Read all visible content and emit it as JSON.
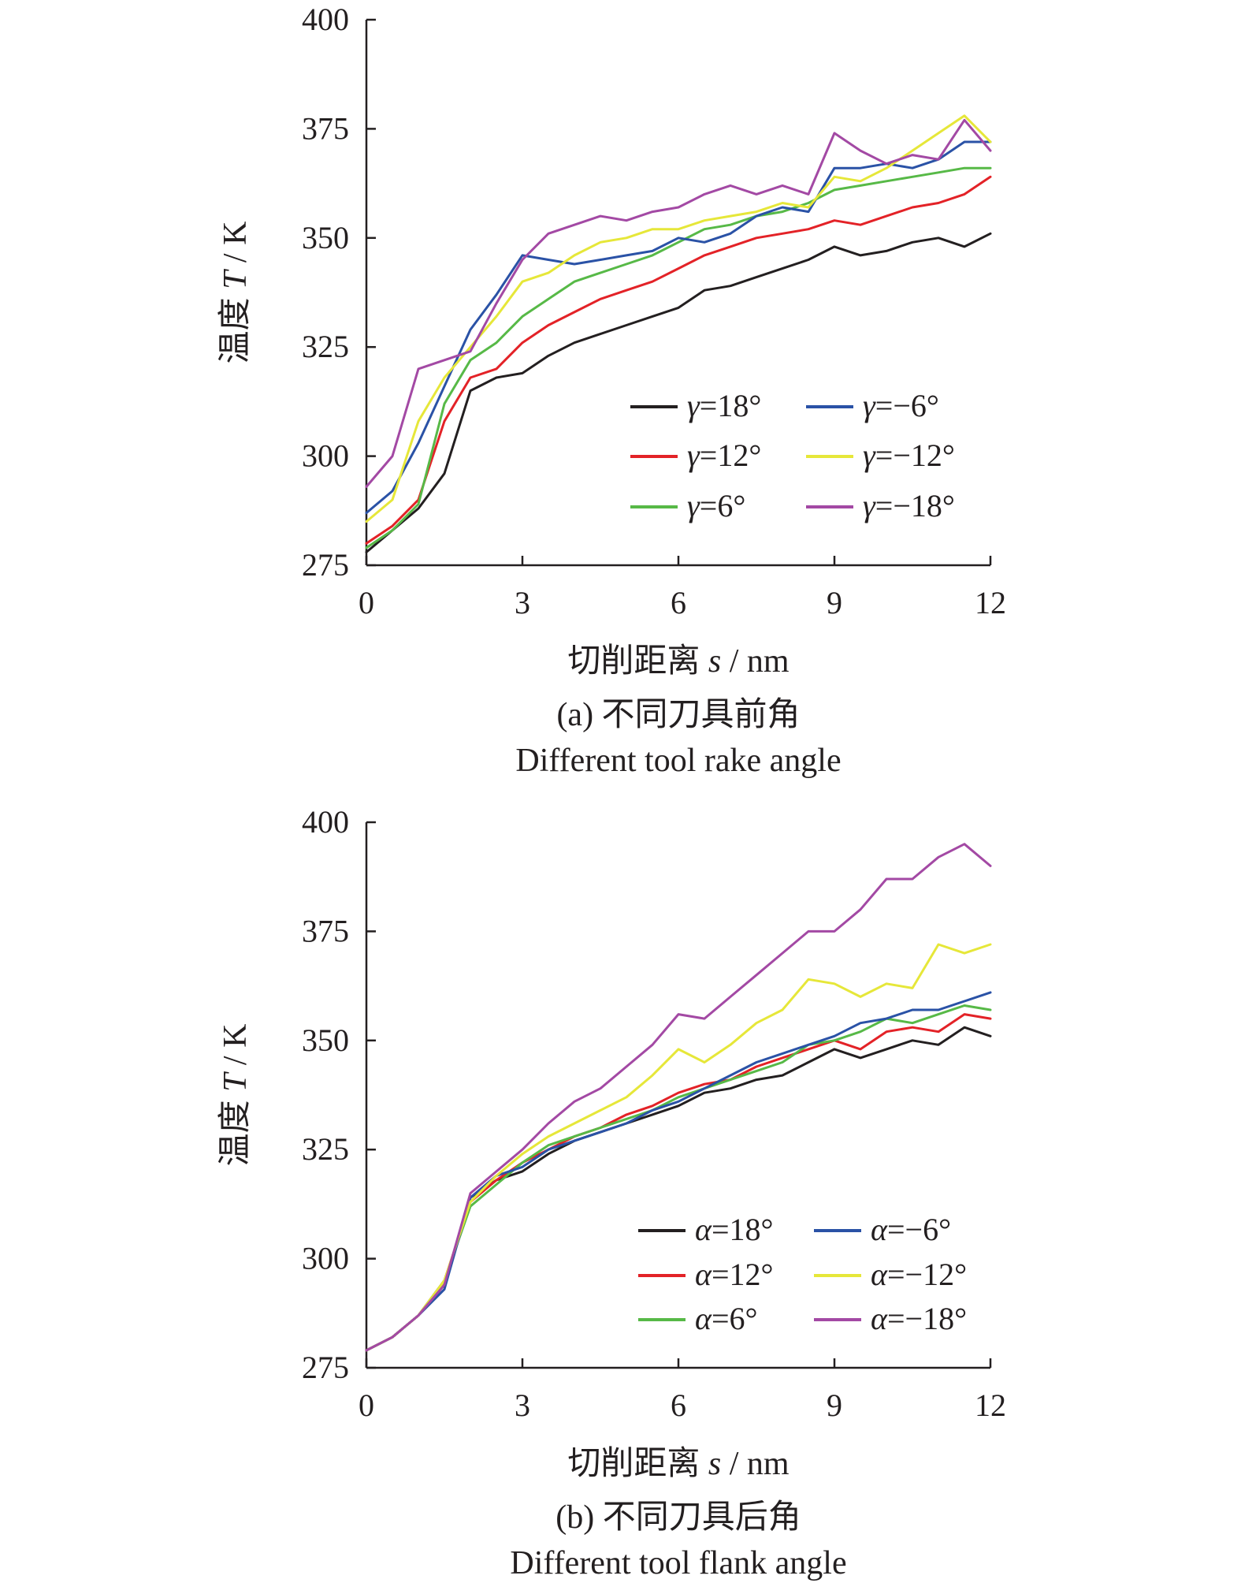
{
  "chart_data": [
    {
      "type": "line",
      "panel": "a",
      "caption": "(a) 不同刀具前角",
      "subcaption": "Different tool rake angle",
      "xlabel_main": "切削距离 ",
      "xlabel_var": "s",
      "xlabel_unit": " / nm",
      "ylabel_main": "温度 ",
      "ylabel_var": "T",
      "ylabel_unit": " / K",
      "xlim": [
        0,
        12
      ],
      "ylim": [
        275,
        400
      ],
      "xticks": [
        "0",
        "3",
        "6",
        "9",
        "12"
      ],
      "yticks": [
        "275",
        "300",
        "325",
        "350",
        "375",
        "400"
      ],
      "grid": false,
      "legend_position": "bottom-right",
      "legend_symbol": "γ",
      "x": [
        0,
        0.5,
        1,
        1.5,
        2,
        2.5,
        3,
        3.5,
        4,
        4.5,
        5,
        5.5,
        6,
        6.5,
        7,
        7.5,
        8,
        8.5,
        9,
        9.5,
        10,
        10.5,
        11,
        11.5,
        12
      ],
      "series": [
        {
          "name": "=18°",
          "color": "#231f20",
          "values": [
            278,
            283,
            288,
            296,
            315,
            318,
            319,
            323,
            326,
            328,
            330,
            332,
            334,
            338,
            339,
            341,
            343,
            345,
            348,
            346,
            347,
            349,
            350,
            348,
            351
          ]
        },
        {
          "name": "=12°",
          "color": "#e32227",
          "values": [
            280,
            284,
            290,
            308,
            318,
            320,
            326,
            330,
            333,
            336,
            338,
            340,
            343,
            346,
            348,
            350,
            351,
            352,
            354,
            353,
            355,
            357,
            358,
            360,
            364
          ]
        },
        {
          "name": "=6°",
          "color": "#57b947",
          "values": [
            279,
            283,
            289,
            312,
            322,
            326,
            332,
            336,
            340,
            342,
            344,
            346,
            349,
            352,
            353,
            355,
            356,
            358,
            361,
            362,
            363,
            364,
            365,
            366,
            366
          ]
        },
        {
          "name": "=−6°",
          "color": "#2a52a6",
          "values": [
            287,
            292,
            303,
            316,
            329,
            337,
            346,
            345,
            344,
            345,
            346,
            347,
            350,
            349,
            351,
            355,
            357,
            356,
            366,
            366,
            367,
            366,
            368,
            372,
            372
          ]
        },
        {
          "name": "=−12°",
          "color": "#e6e739",
          "values": [
            285,
            290,
            308,
            318,
            325,
            332,
            340,
            342,
            346,
            349,
            350,
            352,
            352,
            354,
            355,
            356,
            358,
            357,
            364,
            363,
            366,
            370,
            374,
            378,
            372
          ]
        },
        {
          "name": "=−18°",
          "color": "#a349a4",
          "values": [
            293,
            300,
            320,
            322,
            324,
            335,
            345,
            351,
            353,
            355,
            354,
            356,
            357,
            360,
            362,
            360,
            362,
            360,
            374,
            370,
            367,
            369,
            368,
            377,
            370
          ]
        }
      ]
    },
    {
      "type": "line",
      "panel": "b",
      "caption": "(b) 不同刀具后角",
      "subcaption": "Different tool flank angle",
      "xlabel_main": "切削距离 ",
      "xlabel_var": "s",
      "xlabel_unit": " / nm",
      "ylabel_main": "温度 ",
      "ylabel_var": "T",
      "ylabel_unit": " / K",
      "xlim": [
        0,
        12
      ],
      "ylim": [
        275,
        400
      ],
      "xticks": [
        "0",
        "3",
        "6",
        "9",
        "12"
      ],
      "yticks": [
        "275",
        "300",
        "325",
        "350",
        "375",
        "400"
      ],
      "grid": false,
      "legend_position": "bottom-right",
      "legend_symbol": "α",
      "x": [
        0,
        0.5,
        1,
        1.5,
        2,
        2.5,
        3,
        3.5,
        4,
        4.5,
        5,
        5.5,
        6,
        6.5,
        7,
        7.5,
        8,
        8.5,
        9,
        9.5,
        10,
        10.5,
        11,
        11.5,
        12
      ],
      "series": [
        {
          "name": "=18°",
          "color": "#231f20",
          "values": [
            279,
            282,
            287,
            294,
            314,
            318,
            320,
            324,
            327,
            329,
            331,
            333,
            335,
            338,
            339,
            341,
            342,
            345,
            348,
            346,
            348,
            350,
            349,
            353,
            351
          ]
        },
        {
          "name": "=12°",
          "color": "#e32227",
          "values": [
            279,
            282,
            287,
            295,
            313,
            318,
            322,
            325,
            328,
            330,
            333,
            335,
            338,
            340,
            341,
            344,
            346,
            348,
            350,
            348,
            352,
            353,
            352,
            356,
            355
          ]
        },
        {
          "name": "=6°",
          "color": "#57b947",
          "values": [
            279,
            282,
            287,
            295,
            312,
            317,
            322,
            326,
            328,
            330,
            332,
            334,
            337,
            339,
            341,
            343,
            345,
            349,
            350,
            352,
            355,
            354,
            356,
            358,
            357
          ]
        },
        {
          "name": "=−6°",
          "color": "#2a52a6",
          "values": [
            279,
            282,
            287,
            293,
            314,
            319,
            321,
            325,
            327,
            329,
            331,
            334,
            336,
            339,
            342,
            345,
            347,
            349,
            351,
            354,
            355,
            357,
            357,
            359,
            361
          ]
        },
        {
          "name": "=−12°",
          "color": "#e6e739",
          "values": [
            279,
            282,
            287,
            295,
            313,
            319,
            324,
            328,
            331,
            334,
            337,
            342,
            348,
            345,
            349,
            354,
            357,
            364,
            363,
            360,
            363,
            362,
            372,
            370,
            372
          ]
        },
        {
          "name": "=−18°",
          "color": "#a349a4",
          "values": [
            279,
            282,
            287,
            294,
            315,
            320,
            325,
            331,
            336,
            339,
            344,
            349,
            356,
            355,
            360,
            365,
            370,
            375,
            375,
            380,
            387,
            387,
            392,
            395,
            390
          ]
        }
      ]
    }
  ]
}
